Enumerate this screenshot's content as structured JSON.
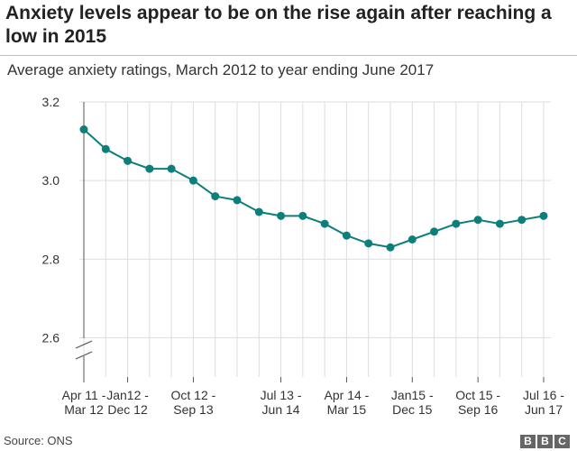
{
  "title": "Anxiety levels appear to be on the rise again after reaching a low in 2015",
  "subtitle": "Average anxiety ratings, March 2012 to year ending June 2017",
  "source": "Source: ONS",
  "logo": [
    "B",
    "B",
    "C"
  ],
  "colors": {
    "line": "#0d7f7a",
    "grid": "#dddddd",
    "axis": "#555555"
  },
  "chart_data": {
    "type": "line",
    "title": "Anxiety levels appear to be on the rise again after reaching a low in 2015",
    "subtitle": "Average anxiety ratings, March 2012 to year ending June 2017",
    "ylim": [
      2.5,
      3.2
    ],
    "yticks": [
      2.6,
      2.8,
      3.0,
      3.2
    ],
    "ytick_labels": [
      "2.6",
      "2.8",
      "3.0",
      "3.2"
    ],
    "grid": true,
    "axis_break": true,
    "x_labels": [
      {
        "index": 0,
        "line1": "Apr 11 -",
        "line2": "Mar 12"
      },
      {
        "index": 2,
        "line1": "Jan12 -",
        "line2": "Dec 12"
      },
      {
        "index": 5,
        "line1": "Oct 12 -",
        "line2": "Sep 13"
      },
      {
        "index": 9,
        "line1": "Jul 13 -",
        "line2": "Jun 14"
      },
      {
        "index": 12,
        "line1": "Apr 14 -",
        "line2": "Mar 15"
      },
      {
        "index": 15,
        "line1": "Jan15 -",
        "line2": "Dec 15"
      },
      {
        "index": 18,
        "line1": "Oct 15 -",
        "line2": "Sep 16"
      },
      {
        "index": 21,
        "line1": "Jul 16 -",
        "line2": "Jun 17"
      }
    ],
    "series": [
      {
        "values": [
          3.13,
          3.08,
          3.05,
          3.03,
          3.03,
          3.0,
          2.96,
          2.95,
          2.92,
          2.91,
          2.91,
          2.89,
          2.86,
          2.84,
          2.83,
          2.85,
          2.87,
          2.89,
          2.9,
          2.89,
          2.9,
          2.91
        ]
      }
    ]
  }
}
